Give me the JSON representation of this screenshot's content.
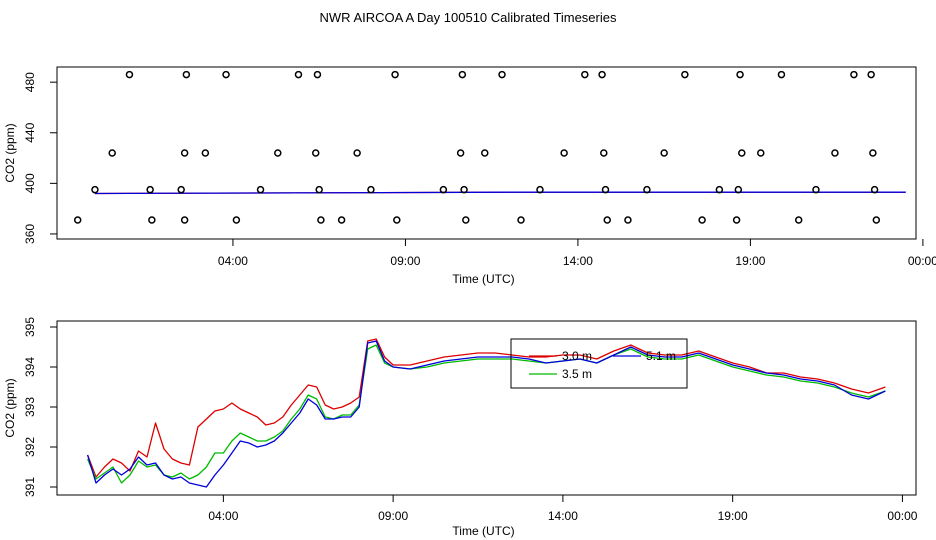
{
  "figure": {
    "title": "NWR AIRCOA A  Day 100510  Calibrated Timeseries"
  },
  "chart_data": [
    {
      "type": "scatter",
      "xlabel": "Time (UTC)",
      "ylabel": "CO2 (ppm)",
      "x_unit": "hours UTC",
      "xlim": [
        -1.1,
        23.8
      ],
      "ylim": [
        356,
        492
      ],
      "xticks": [
        4,
        9,
        14,
        19,
        24
      ],
      "xtick_labels": [
        "04:00",
        "09:00",
        "14:00",
        "19:00",
        "00:00"
      ],
      "yticks": [
        360,
        400,
        440,
        480
      ],
      "ytick_labels": [
        "360",
        "400",
        "440",
        "480"
      ],
      "grid": false,
      "reference_points": {
        "name": "calibration",
        "marker": "open-circle",
        "color": "#000000",
        "points": [
          [
            -0.5,
            371
          ],
          [
            0.0,
            395
          ],
          [
            0.5,
            424
          ],
          [
            1.0,
            486
          ],
          [
            1.6,
            395
          ],
          [
            1.65,
            371
          ],
          [
            2.5,
            395
          ],
          [
            2.6,
            424
          ],
          [
            2.65,
            486
          ],
          [
            2.6,
            371
          ],
          [
            3.2,
            424
          ],
          [
            3.8,
            486
          ],
          [
            4.1,
            371
          ],
          [
            4.8,
            395
          ],
          [
            5.3,
            424
          ],
          [
            5.9,
            486
          ],
          [
            6.4,
            424
          ],
          [
            6.45,
            486
          ],
          [
            6.5,
            395
          ],
          [
            6.55,
            371
          ],
          [
            7.15,
            371
          ],
          [
            7.6,
            424
          ],
          [
            8.0,
            395
          ],
          [
            8.7,
            486
          ],
          [
            8.75,
            371
          ],
          [
            10.1,
            395
          ],
          [
            10.6,
            424
          ],
          [
            10.65,
            486
          ],
          [
            10.7,
            395
          ],
          [
            10.75,
            371
          ],
          [
            11.3,
            424
          ],
          [
            11.8,
            486
          ],
          [
            12.35,
            371
          ],
          [
            12.9,
            395
          ],
          [
            13.6,
            424
          ],
          [
            14.2,
            486
          ],
          [
            14.7,
            486
          ],
          [
            14.75,
            424
          ],
          [
            14.8,
            395
          ],
          [
            14.85,
            371
          ],
          [
            15.45,
            371
          ],
          [
            16.0,
            395
          ],
          [
            16.5,
            424
          ],
          [
            17.1,
            486
          ],
          [
            17.6,
            371
          ],
          [
            18.1,
            395
          ],
          [
            18.65,
            395
          ],
          [
            18.7,
            486
          ],
          [
            18.75,
            424
          ],
          [
            18.6,
            371
          ],
          [
            19.3,
            424
          ],
          [
            19.9,
            486
          ],
          [
            20.4,
            371
          ],
          [
            20.9,
            395
          ],
          [
            21.45,
            424
          ],
          [
            22.0,
            486
          ],
          [
            22.5,
            486
          ],
          [
            22.55,
            424
          ],
          [
            22.6,
            395
          ],
          [
            22.65,
            371
          ]
        ]
      },
      "series": [
        {
          "color": "#dd0000",
          "x": [
            0,
            12,
            23.5
          ],
          "y": [
            392,
            393,
            393
          ]
        },
        {
          "color": "#0000dd",
          "x": [
            0,
            12,
            23.5
          ],
          "y": [
            392,
            393,
            393
          ]
        }
      ]
    },
    {
      "type": "line",
      "xlabel": "Time (UTC)",
      "ylabel": "CO2 (ppm)",
      "x_unit": "hours UTC",
      "xlim": [
        -0.9,
        24.4
      ],
      "ylim": [
        390.8,
        395.15
      ],
      "xticks": [
        4,
        9,
        14,
        19,
        24
      ],
      "xtick_labels": [
        "04:00",
        "09:00",
        "14:00",
        "19:00",
        "00:00"
      ],
      "yticks": [
        391,
        392,
        393,
        394,
        395
      ],
      "ytick_labels": [
        "391",
        "392",
        "393",
        "394",
        "395"
      ],
      "grid": false,
      "legend": {
        "placement": "top-center",
        "entries": [
          {
            "label": "3.0 m",
            "color": "#dd0000"
          },
          {
            "label": "3.5 m",
            "color": "#00bb00"
          },
          {
            "label": "5.1 m",
            "color": "#0000dd"
          }
        ]
      },
      "series": [
        {
          "name": "3.0 m",
          "color": "#dd0000",
          "x": [
            0.0,
            0.25,
            0.5,
            0.75,
            1.0,
            1.25,
            1.5,
            1.75,
            2.0,
            2.25,
            2.5,
            2.75,
            3.0,
            3.25,
            3.5,
            3.75,
            4.0,
            4.25,
            4.5,
            4.75,
            5.0,
            5.25,
            5.5,
            5.75,
            6.0,
            6.25,
            6.5,
            6.75,
            7.0,
            7.25,
            7.5,
            7.75,
            8.0,
            8.25,
            8.5,
            8.75,
            9.0,
            9.5,
            10.0,
            10.5,
            11.0,
            11.5,
            12.0,
            12.5,
            13.0,
            13.5,
            14.0,
            14.5,
            15.0,
            15.5,
            16.0,
            16.5,
            17.0,
            17.5,
            18.0,
            18.5,
            19.0,
            19.5,
            20.0,
            20.5,
            21.0,
            21.5,
            22.0,
            22.5,
            23.0,
            23.5
          ],
          "y": [
            391.8,
            391.25,
            391.5,
            391.7,
            391.6,
            391.4,
            391.9,
            391.75,
            392.6,
            391.95,
            391.7,
            391.6,
            391.55,
            392.5,
            392.7,
            392.9,
            392.95,
            393.1,
            392.95,
            392.85,
            392.75,
            392.55,
            392.6,
            392.75,
            393.05,
            393.3,
            393.55,
            393.5,
            393.05,
            392.95,
            393.0,
            393.1,
            393.25,
            394.65,
            394.7,
            394.25,
            394.05,
            394.05,
            394.15,
            394.25,
            394.3,
            394.35,
            394.35,
            394.3,
            394.25,
            394.25,
            394.3,
            394.3,
            394.2,
            394.4,
            394.55,
            394.35,
            394.3,
            394.3,
            394.4,
            394.25,
            394.1,
            394.0,
            393.85,
            393.85,
            393.75,
            393.7,
            393.6,
            393.45,
            393.35,
            393.5
          ]
        },
        {
          "name": "3.5 m",
          "color": "#00bb00",
          "x": [
            0.0,
            0.25,
            0.5,
            0.75,
            1.0,
            1.25,
            1.5,
            1.75,
            2.0,
            2.25,
            2.5,
            2.75,
            3.0,
            3.25,
            3.5,
            3.75,
            4.0,
            4.25,
            4.5,
            4.75,
            5.0,
            5.25,
            5.5,
            5.75,
            6.0,
            6.25,
            6.5,
            6.75,
            7.0,
            7.25,
            7.5,
            7.75,
            8.0,
            8.25,
            8.5,
            8.75,
            9.0,
            9.5,
            10.0,
            10.5,
            11.0,
            11.5,
            12.0,
            12.5,
            13.0,
            13.5,
            14.0,
            14.5,
            15.0,
            15.5,
            16.0,
            16.5,
            17.0,
            17.5,
            18.0,
            18.5,
            19.0,
            19.5,
            20.0,
            20.5,
            21.0,
            21.5,
            22.0,
            22.5,
            23.0,
            23.5
          ],
          "y": [
            391.7,
            391.2,
            391.35,
            391.5,
            391.1,
            391.3,
            391.65,
            391.5,
            391.55,
            391.3,
            391.25,
            391.35,
            391.2,
            391.3,
            391.5,
            391.85,
            391.85,
            392.15,
            392.35,
            392.25,
            392.15,
            392.15,
            392.25,
            392.4,
            392.7,
            392.95,
            393.3,
            393.2,
            392.75,
            392.7,
            392.8,
            392.8,
            393.05,
            394.45,
            394.55,
            394.1,
            394.0,
            393.95,
            394.0,
            394.1,
            394.15,
            394.2,
            394.2,
            394.2,
            394.15,
            394.1,
            394.15,
            394.2,
            394.1,
            394.3,
            394.45,
            394.25,
            394.2,
            394.2,
            394.3,
            394.15,
            394.0,
            393.9,
            393.8,
            393.75,
            393.65,
            393.6,
            393.5,
            393.35,
            393.25,
            393.4
          ]
        },
        {
          "name": "5.1 m",
          "color": "#0000dd",
          "x": [
            0.0,
            0.25,
            0.5,
            0.75,
            1.0,
            1.25,
            1.5,
            1.75,
            2.0,
            2.25,
            2.5,
            2.75,
            3.0,
            3.25,
            3.5,
            3.75,
            4.0,
            4.25,
            4.5,
            4.75,
            5.0,
            5.25,
            5.5,
            5.75,
            6.0,
            6.25,
            6.5,
            6.75,
            7.0,
            7.25,
            7.5,
            7.75,
            8.0,
            8.25,
            8.5,
            8.75,
            9.0,
            9.5,
            10.0,
            10.5,
            11.0,
            11.5,
            12.0,
            12.5,
            13.0,
            13.5,
            14.0,
            14.5,
            15.0,
            15.5,
            16.0,
            16.5,
            17.0,
            17.5,
            18.0,
            18.5,
            19.0,
            19.5,
            20.0,
            20.5,
            21.0,
            21.5,
            22.0,
            22.5,
            23.0,
            23.5
          ],
          "y": [
            391.8,
            391.1,
            391.3,
            391.45,
            391.3,
            391.45,
            391.75,
            391.55,
            391.6,
            391.3,
            391.2,
            391.25,
            391.1,
            391.05,
            391.0,
            391.3,
            391.55,
            391.85,
            392.15,
            392.1,
            392.0,
            392.05,
            392.15,
            392.35,
            392.6,
            392.85,
            393.2,
            393.05,
            392.7,
            392.7,
            392.75,
            392.75,
            393.0,
            394.6,
            394.65,
            394.15,
            394.0,
            393.95,
            394.05,
            394.15,
            394.2,
            394.25,
            394.25,
            394.25,
            394.2,
            394.1,
            394.15,
            394.2,
            394.1,
            394.3,
            394.5,
            394.3,
            394.25,
            394.25,
            394.35,
            394.2,
            394.05,
            393.95,
            393.85,
            393.8,
            393.7,
            393.65,
            393.55,
            393.3,
            393.2,
            393.4
          ]
        }
      ]
    }
  ]
}
